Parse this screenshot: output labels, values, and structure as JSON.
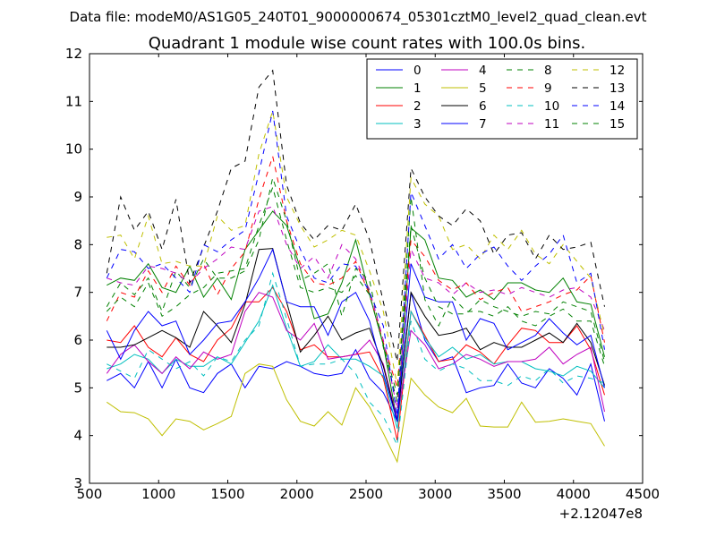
{
  "chart_data": {
    "type": "line",
    "suptitle": "Data file: modeM0/AS1G05_240T01_9000000674_05301cztM0_level2_quad_clean.evt",
    "title": "Quadrant 1 module wise count rates with 100.0s bins.",
    "xlabel": "",
    "ylabel": "",
    "x_offset_label": "+2.12047e8",
    "xlim": [
      500,
      4500
    ],
    "ylim": [
      3,
      12
    ],
    "xticks": [
      500,
      1000,
      1500,
      2000,
      2500,
      3000,
      3500,
      4000,
      4500
    ],
    "yticks": [
      3,
      4,
      5,
      6,
      7,
      8,
      9,
      10,
      11,
      12
    ],
    "grid": false,
    "legend": {
      "placement": "top-right",
      "columns": 4
    },
    "x": [
      625,
      725,
      825,
      925,
      1025,
      1125,
      1225,
      1325,
      1425,
      1525,
      1625,
      1725,
      1825,
      1925,
      2025,
      2125,
      2225,
      2325,
      2425,
      2525,
      2625,
      2725,
      2825,
      2925,
      3025,
      3125,
      3225,
      3325,
      3425,
      3525,
      3625,
      3725,
      3825,
      3925,
      4025,
      4125,
      4225
    ],
    "series": [
      {
        "name": "0",
        "color": "#0000ff",
        "dash": "solid",
        "values": [
          5.15,
          5.3,
          5.0,
          5.55,
          5.0,
          5.6,
          5.0,
          4.9,
          5.3,
          5.5,
          5.0,
          5.45,
          5.4,
          5.55,
          5.45,
          5.3,
          5.25,
          5.3,
          5.8,
          5.2,
          4.9,
          4.3,
          7.0,
          6.0,
          5.55,
          5.65,
          4.9,
          5.0,
          5.05,
          5.5,
          5.1,
          5.0,
          5.4,
          5.2,
          4.85,
          5.5,
          4.3
        ]
      },
      {
        "name": "1",
        "color": "#008000",
        "dash": "solid",
        "values": [
          7.15,
          7.3,
          7.25,
          7.6,
          7.1,
          7.0,
          7.55,
          6.9,
          7.3,
          6.85,
          7.9,
          8.3,
          8.7,
          8.4,
          7.5,
          6.45,
          6.55,
          7.2,
          8.1,
          6.95,
          5.9,
          4.3,
          8.35,
          8.1,
          7.3,
          7.25,
          6.9,
          7.05,
          6.85,
          7.2,
          7.2,
          7.05,
          7.0,
          7.3,
          6.8,
          6.75,
          5.65
        ]
      },
      {
        "name": "2",
        "color": "#ff0000",
        "dash": "solid",
        "values": [
          6.0,
          5.95,
          6.3,
          5.85,
          5.65,
          6.05,
          5.7,
          5.55,
          6.0,
          6.25,
          6.8,
          6.8,
          7.1,
          6.6,
          5.8,
          5.9,
          5.65,
          5.65,
          5.7,
          5.75,
          5.2,
          3.9,
          6.6,
          6.1,
          5.55,
          5.6,
          5.9,
          5.75,
          5.5,
          5.9,
          6.25,
          6.2,
          5.95,
          5.95,
          6.3,
          5.8,
          4.85
        ]
      },
      {
        "name": "3",
        "color": "#00bfbf",
        "dash": "solid",
        "values": [
          5.4,
          5.5,
          5.7,
          5.6,
          5.3,
          5.6,
          5.45,
          5.45,
          5.65,
          5.5,
          5.95,
          6.4,
          7.15,
          6.25,
          5.45,
          5.55,
          5.9,
          5.6,
          5.6,
          5.45,
          5.25,
          4.15,
          6.6,
          6.05,
          5.65,
          5.85,
          5.6,
          5.7,
          5.5,
          5.55,
          5.55,
          5.4,
          5.35,
          5.25,
          5.45,
          5.35,
          5.0
        ]
      },
      {
        "name": "4",
        "color": "#bf00bf",
        "dash": "solid",
        "values": [
          5.3,
          5.7,
          5.9,
          5.55,
          5.3,
          5.65,
          5.4,
          5.75,
          5.6,
          5.7,
          6.6,
          7.0,
          6.9,
          6.2,
          6.0,
          6.35,
          5.6,
          5.65,
          5.7,
          6.0,
          5.5,
          4.35,
          6.2,
          5.9,
          5.4,
          5.5,
          5.7,
          5.6,
          5.45,
          5.55,
          5.55,
          5.6,
          5.85,
          5.5,
          5.7,
          5.85,
          4.5
        ]
      },
      {
        "name": "5",
        "color": "#bfbf00",
        "dash": "solid",
        "values": [
          4.7,
          4.5,
          4.48,
          4.35,
          4.0,
          4.35,
          4.3,
          4.12,
          4.25,
          4.4,
          5.3,
          5.5,
          5.45,
          4.75,
          4.3,
          4.2,
          4.5,
          4.22,
          5.0,
          4.6,
          4.05,
          3.45,
          5.2,
          4.85,
          4.6,
          4.48,
          4.78,
          4.2,
          4.18,
          4.18,
          4.7,
          4.28,
          4.3,
          4.35,
          4.3,
          4.25,
          3.78
        ]
      },
      {
        "name": "6",
        "color": "#000000",
        "dash": "solid",
        "values": [
          5.85,
          5.85,
          5.9,
          6.05,
          6.2,
          6.05,
          5.85,
          6.6,
          6.3,
          5.95,
          6.75,
          7.9,
          7.92,
          6.8,
          5.75,
          6.1,
          6.5,
          6.0,
          6.15,
          6.25,
          5.45,
          4.3,
          7.0,
          6.5,
          6.1,
          6.15,
          6.25,
          5.8,
          5.95,
          5.85,
          5.85,
          6.0,
          6.15,
          5.95,
          6.35,
          5.95,
          5.05
        ]
      },
      {
        "name": "7",
        "color": "#0000ff",
        "dash": "solid",
        "values": [
          6.2,
          5.6,
          6.2,
          6.6,
          6.3,
          6.4,
          5.7,
          6.0,
          6.35,
          6.4,
          6.8,
          7.3,
          7.9,
          6.8,
          6.7,
          6.7,
          6.1,
          6.8,
          7.0,
          6.4,
          5.3,
          4.3,
          7.6,
          6.9,
          6.8,
          6.8,
          6.0,
          6.45,
          6.35,
          5.8,
          5.95,
          6.1,
          6.45,
          6.15,
          5.9,
          6.1,
          5.0
        ]
      },
      {
        "name": "8",
        "color": "#008000",
        "dash": "dashed",
        "values": [
          6.7,
          7.2,
          6.95,
          7.3,
          6.6,
          7.45,
          7.1,
          7.7,
          7.3,
          7.3,
          7.45,
          8.1,
          9.4,
          8.5,
          7.25,
          7.4,
          7.6,
          6.5,
          7.5,
          7.25,
          5.85,
          4.7,
          9.0,
          6.85,
          6.3,
          6.9,
          6.6,
          6.6,
          6.5,
          6.7,
          6.4,
          6.3,
          6.5,
          6.65,
          6.4,
          6.4,
          5.45
        ]
      },
      {
        "name": "9",
        "color": "#ff0000",
        "dash": "dashed",
        "values": [
          6.4,
          7.0,
          6.9,
          7.45,
          7.0,
          7.55,
          7.15,
          7.6,
          6.95,
          7.5,
          7.85,
          8.95,
          9.85,
          8.5,
          7.6,
          7.2,
          7.15,
          7.3,
          7.65,
          6.95,
          5.95,
          5.0,
          8.1,
          7.75,
          7.25,
          7.05,
          7.2,
          6.85,
          7.0,
          7.1,
          6.6,
          6.7,
          6.8,
          6.95,
          7.05,
          7.35,
          5.95
        ]
      },
      {
        "name": "10",
        "color": "#00bfbf",
        "dash": "dashed",
        "values": [
          5.5,
          5.35,
          5.2,
          5.8,
          5.6,
          5.4,
          5.55,
          5.25,
          5.65,
          5.55,
          6.0,
          6.3,
          7.4,
          6.45,
          5.45,
          5.5,
          5.5,
          5.6,
          5.3,
          4.7,
          4.4,
          3.8,
          6.4,
          5.6,
          5.35,
          5.5,
          5.4,
          5.15,
          5.15,
          5.05,
          5.25,
          5.15,
          5.4,
          5.1,
          5.25,
          5.2,
          5.1
        ]
      },
      {
        "name": "11",
        "color": "#bf00bf",
        "dash": "dashed",
        "values": [
          7.3,
          7.2,
          7.15,
          7.55,
          7.5,
          7.4,
          7.2,
          7.5,
          7.7,
          7.95,
          7.9,
          8.7,
          8.8,
          8.0,
          7.5,
          7.75,
          7.3,
          8.0,
          7.7,
          7.05,
          6.0,
          4.55,
          7.9,
          7.3,
          7.2,
          6.95,
          7.2,
          7.0,
          7.05,
          6.95,
          7.1,
          7.0,
          6.9,
          7.05,
          7.1,
          6.9,
          6.2
        ]
      },
      {
        "name": "12",
        "color": "#bfbf00",
        "dash": "dashed",
        "values": [
          8.15,
          8.2,
          7.7,
          8.6,
          7.6,
          7.65,
          7.55,
          7.55,
          8.6,
          8.3,
          8.4,
          9.9,
          10.8,
          9.0,
          8.4,
          7.95,
          8.1,
          8.3,
          8.2,
          7.45,
          6.6,
          5.05,
          9.4,
          8.85,
          8.6,
          7.9,
          8.0,
          7.7,
          8.2,
          7.9,
          8.3,
          7.8,
          7.6,
          8.0,
          7.65,
          7.3,
          6.1
        ]
      },
      {
        "name": "13",
        "color": "#000000",
        "dash": "dashed",
        "values": [
          7.4,
          9.0,
          8.3,
          8.7,
          7.9,
          8.95,
          7.2,
          7.95,
          8.7,
          9.6,
          9.75,
          11.3,
          11.65,
          9.25,
          8.45,
          8.1,
          8.4,
          8.3,
          8.85,
          8.1,
          6.8,
          5.55,
          9.6,
          9.0,
          8.6,
          8.4,
          8.75,
          8.5,
          7.8,
          8.2,
          8.25,
          7.7,
          8.2,
          7.9,
          7.95,
          8.05,
          6.7
        ]
      },
      {
        "name": "14",
        "color": "#0000ff",
        "dash": "dashed",
        "values": [
          7.3,
          7.9,
          7.85,
          7.5,
          7.6,
          7.3,
          7.0,
          8.0,
          7.85,
          8.1,
          8.3,
          9.5,
          10.8,
          8.6,
          7.9,
          7.3,
          7.2,
          7.6,
          7.55,
          7.0,
          6.3,
          4.4,
          9.1,
          8.4,
          7.7,
          8.0,
          7.5,
          7.8,
          7.95,
          7.55,
          7.25,
          7.55,
          7.8,
          8.2,
          7.2,
          7.4,
          5.8
        ]
      },
      {
        "name": "15",
        "color": "#008000",
        "dash": "dashed",
        "values": [
          6.6,
          6.9,
          6.7,
          7.2,
          6.5,
          6.7,
          6.95,
          7.1,
          7.4,
          7.45,
          7.5,
          8.4,
          9.2,
          8.1,
          7.1,
          7.0,
          7.1,
          7.0,
          7.35,
          6.95,
          5.9,
          4.85,
          8.4,
          7.3,
          6.7,
          6.55,
          6.55,
          6.85,
          6.7,
          6.6,
          6.5,
          6.6,
          6.55,
          6.8,
          6.7,
          6.6,
          5.55
        ]
      }
    ]
  }
}
